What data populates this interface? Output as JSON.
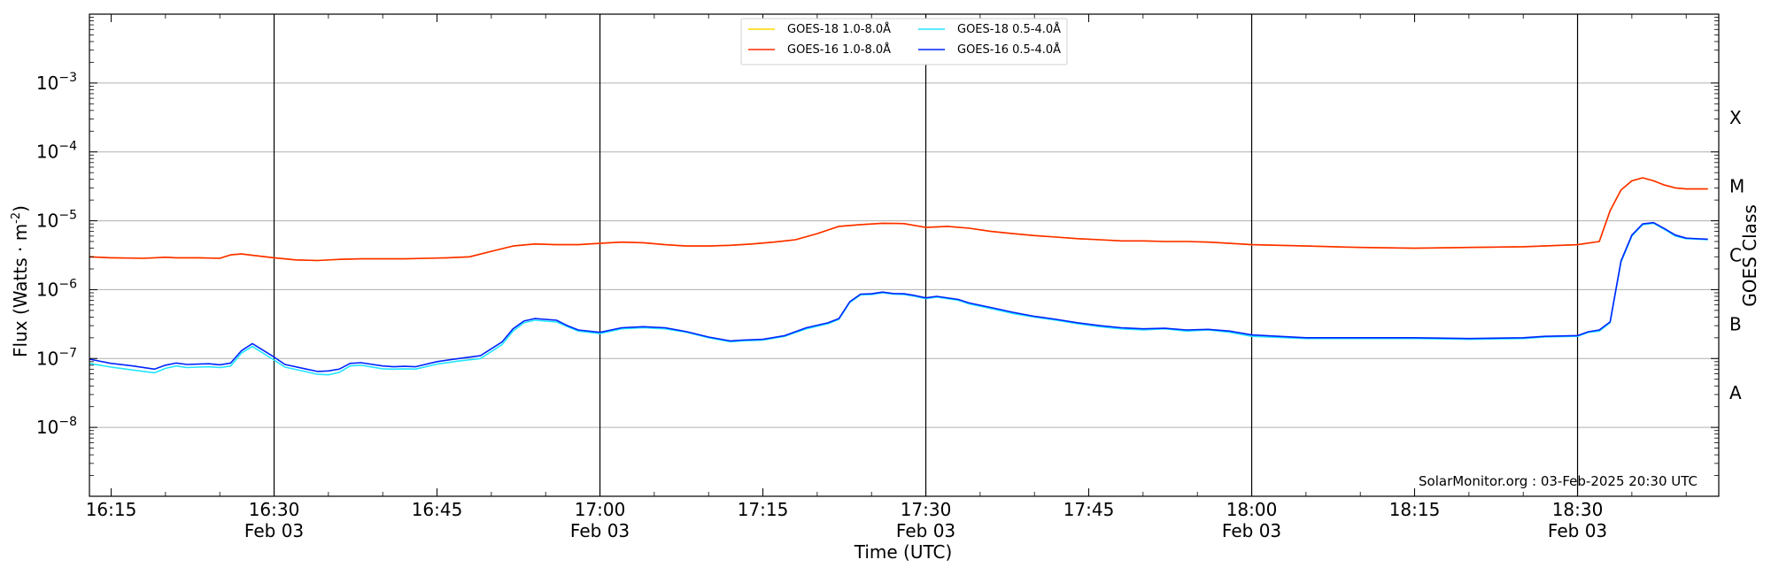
{
  "chart_data": {
    "type": "line",
    "xlabel": "Time (UTC)",
    "ylabel": "Flux (Watts · m",
    "ylabel_sup": "-2",
    "y2label": "GOES Class",
    "yscale": "log",
    "ylim": [
      1e-09,
      0.01
    ],
    "xlim": [
      "16:13",
      "18:43"
    ],
    "grid": "horizontal major y gridlines",
    "legend_position": "top-center",
    "footer": "SolarMonitor.org : 03-Feb-2025 20:30 UTC",
    "y_ticks": [
      {
        "value": 1e-08,
        "label": "10",
        "exp": "−8"
      },
      {
        "value": 1e-07,
        "label": "10",
        "exp": "−7"
      },
      {
        "value": 1e-06,
        "label": "10",
        "exp": "−6"
      },
      {
        "value": 1e-05,
        "label": "10",
        "exp": "−5"
      },
      {
        "value": 0.0001,
        "label": "10",
        "exp": "−4"
      },
      {
        "value": 0.001,
        "label": "10",
        "exp": "−3"
      }
    ],
    "goes_classes": [
      {
        "label": "A",
        "value": 3.16e-08
      },
      {
        "label": "B",
        "value": 3.16e-07
      },
      {
        "label": "C",
        "value": 3.16e-06
      },
      {
        "label": "M",
        "value": 3.16e-05
      },
      {
        "label": "X",
        "value": 0.000316
      }
    ],
    "x_ticks": [
      {
        "time": "16:15",
        "label": "16:15",
        "sub": ""
      },
      {
        "time": "16:30",
        "label": "16:30",
        "sub": "Feb 03"
      },
      {
        "time": "16:45",
        "label": "16:45",
        "sub": ""
      },
      {
        "time": "17:00",
        "label": "17:00",
        "sub": "Feb 03"
      },
      {
        "time": "17:15",
        "label": "17:15",
        "sub": ""
      },
      {
        "time": "17:30",
        "label": "17:30",
        "sub": "Feb 03"
      },
      {
        "time": "17:45",
        "label": "17:45",
        "sub": ""
      },
      {
        "time": "18:00",
        "label": "18:00",
        "sub": "Feb 03"
      },
      {
        "time": "18:15",
        "label": "18:15",
        "sub": ""
      },
      {
        "time": "18:30",
        "label": "18:30",
        "sub": "Feb 03"
      }
    ],
    "vlines": [
      "16:30",
      "17:00",
      "17:30",
      "18:00",
      "18:30"
    ],
    "legend_layout": [
      [
        "GOES-18 1.0-8.0Å",
        "GOES-18 0.5-4.0Å"
      ],
      [
        "GOES-16 1.0-8.0Å",
        "GOES-16 0.5-4.0Å"
      ]
    ],
    "series": [
      {
        "name": "GOES-18 1.0-8.0Å",
        "color": "#ffd700",
        "x": [
          "16:13",
          "16:15",
          "16:18",
          "16:20",
          "16:21",
          "16:23",
          "16:25",
          "16:26",
          "16:27",
          "16:28",
          "16:30",
          "16:32",
          "16:34",
          "16:36",
          "16:38",
          "16:40",
          "16:42",
          "16:44",
          "16:46",
          "16:48",
          "16:50",
          "16:52",
          "16:54",
          "16:56",
          "16:58",
          "17:00",
          "17:02",
          "17:04",
          "17:06",
          "17:08",
          "17:10",
          "17:12",
          "17:14",
          "17:16",
          "17:18",
          "17:20",
          "17:22",
          "17:24",
          "17:26",
          "17:28",
          "17:30",
          "17:32",
          "17:34",
          "17:36",
          "17:38",
          "17:40",
          "17:42",
          "17:44",
          "17:46",
          "17:48",
          "17:50",
          "17:52",
          "17:54",
          "17:56",
          "17:58",
          "18:00",
          "18:05",
          "18:10",
          "18:15",
          "18:20",
          "18:25",
          "18:30",
          "18:32",
          "18:33",
          "18:34",
          "18:35",
          "18:36",
          "18:37",
          "18:38",
          "18:39",
          "18:40",
          "18:42"
        ],
        "y": [
          3e-06,
          2.9e-06,
          2.85e-06,
          2.95e-06,
          2.9e-06,
          2.9e-06,
          2.85e-06,
          3.2e-06,
          3.3e-06,
          3.15e-06,
          2.9e-06,
          2.7e-06,
          2.65e-06,
          2.75e-06,
          2.8e-06,
          2.8e-06,
          2.8e-06,
          2.85e-06,
          2.9e-06,
          3e-06,
          3.6e-06,
          4.3e-06,
          4.6e-06,
          4.5e-06,
          4.5e-06,
          4.7e-06,
          4.9e-06,
          4.8e-06,
          4.5e-06,
          4.3e-06,
          4.3e-06,
          4.4e-06,
          4.6e-06,
          4.9e-06,
          5.3e-06,
          6.5e-06,
          8.3e-06,
          8.8e-06,
          9.2e-06,
          9.1e-06,
          8e-06,
          8.3e-06,
          7.8e-06,
          7e-06,
          6.5e-06,
          6.1e-06,
          5.8e-06,
          5.5e-06,
          5.3e-06,
          5.1e-06,
          5.1e-06,
          5e-06,
          5e-06,
          4.9e-06,
          4.7e-06,
          4.5e-06,
          4.3e-06,
          4.1e-06,
          4e-06,
          4.1e-06,
          4.2e-06,
          4.5e-06,
          5e-06,
          1.4e-05,
          2.8e-05,
          3.8e-05,
          4.2e-05,
          3.8e-05,
          3.3e-05,
          3e-05,
          2.9e-05,
          2.9e-05
        ]
      },
      {
        "name": "GOES-16 1.0-8.0Å",
        "color": "#ff2a00",
        "x": [
          "16:13",
          "16:15",
          "16:18",
          "16:20",
          "16:21",
          "16:23",
          "16:25",
          "16:26",
          "16:27",
          "16:28",
          "16:30",
          "16:32",
          "16:34",
          "16:36",
          "16:38",
          "16:40",
          "16:42",
          "16:44",
          "16:46",
          "16:48",
          "16:50",
          "16:52",
          "16:54",
          "16:56",
          "16:58",
          "17:00",
          "17:02",
          "17:04",
          "17:06",
          "17:08",
          "17:10",
          "17:12",
          "17:14",
          "17:16",
          "17:18",
          "17:20",
          "17:22",
          "17:24",
          "17:26",
          "17:28",
          "17:30",
          "17:32",
          "17:34",
          "17:36",
          "17:38",
          "17:40",
          "17:42",
          "17:44",
          "17:46",
          "17:48",
          "17:50",
          "17:52",
          "17:54",
          "17:56",
          "17:58",
          "18:00",
          "18:05",
          "18:10",
          "18:15",
          "18:20",
          "18:25",
          "18:30",
          "18:32",
          "18:33",
          "18:34",
          "18:35",
          "18:36",
          "18:37",
          "18:38",
          "18:39",
          "18:40",
          "18:42"
        ],
        "y": [
          3e-06,
          2.9e-06,
          2.85e-06,
          2.95e-06,
          2.9e-06,
          2.9e-06,
          2.85e-06,
          3.2e-06,
          3.3e-06,
          3.15e-06,
          2.9e-06,
          2.7e-06,
          2.65e-06,
          2.75e-06,
          2.8e-06,
          2.8e-06,
          2.8e-06,
          2.85e-06,
          2.9e-06,
          3e-06,
          3.6e-06,
          4.3e-06,
          4.6e-06,
          4.5e-06,
          4.5e-06,
          4.7e-06,
          4.9e-06,
          4.8e-06,
          4.5e-06,
          4.3e-06,
          4.3e-06,
          4.4e-06,
          4.6e-06,
          4.9e-06,
          5.3e-06,
          6.5e-06,
          8.3e-06,
          8.8e-06,
          9.2e-06,
          9.1e-06,
          8e-06,
          8.3e-06,
          7.8e-06,
          7e-06,
          6.5e-06,
          6.1e-06,
          5.8e-06,
          5.5e-06,
          5.3e-06,
          5.1e-06,
          5.1e-06,
          5e-06,
          5e-06,
          4.9e-06,
          4.7e-06,
          4.5e-06,
          4.3e-06,
          4.1e-06,
          4e-06,
          4.1e-06,
          4.2e-06,
          4.5e-06,
          5e-06,
          1.4e-05,
          2.8e-05,
          3.8e-05,
          4.2e-05,
          3.8e-05,
          3.3e-05,
          3e-05,
          2.9e-05,
          2.9e-05
        ]
      },
      {
        "name": "GOES-18 0.5-4.0Å",
        "color": "#22e5ff",
        "x": [
          "16:13",
          "16:15",
          "16:17",
          "16:19",
          "16:20",
          "16:21",
          "16:22",
          "16:23",
          "16:24",
          "16:25",
          "16:26",
          "16:27",
          "16:28",
          "16:30",
          "16:31",
          "16:33",
          "16:34",
          "16:35",
          "16:36",
          "16:37",
          "16:38",
          "16:40",
          "16:41",
          "16:42",
          "16:43",
          "16:45",
          "16:47",
          "16:49",
          "16:51",
          "16:52",
          "16:53",
          "16:54",
          "16:56",
          "16:57",
          "16:58",
          "17:00",
          "17:02",
          "17:04",
          "17:06",
          "17:08",
          "17:10",
          "17:12",
          "17:13",
          "17:15",
          "17:17",
          "17:19",
          "17:21",
          "17:22",
          "17:23",
          "17:24",
          "17:25",
          "17:26",
          "17:27",
          "17:28",
          "17:29",
          "17:30",
          "17:31",
          "17:33",
          "17:34",
          "17:36",
          "17:38",
          "17:40",
          "17:42",
          "17:44",
          "17:46",
          "17:48",
          "17:50",
          "17:52",
          "17:54",
          "17:56",
          "17:58",
          "18:00",
          "18:05",
          "18:10",
          "18:15",
          "18:20",
          "18:25",
          "18:27",
          "18:30",
          "18:31",
          "18:32",
          "18:33",
          "18:34",
          "18:35",
          "18:36",
          "18:37",
          "18:38",
          "18:39",
          "18:40",
          "18:42"
        ],
        "y": [
          8.5e-08,
          7.5e-08,
          6.8e-08,
          6.2e-08,
          7.2e-08,
          7.8e-08,
          7.4e-08,
          7.5e-08,
          7.6e-08,
          7.4e-08,
          7.8e-08,
          1.2e-07,
          1.5e-07,
          9.5e-08,
          7.5e-08,
          6.4e-08,
          5.9e-08,
          5.8e-08,
          6.3e-08,
          7.8e-08,
          8e-08,
          7.1e-08,
          7e-08,
          7.1e-08,
          7e-08,
          8.3e-08,
          9.2e-08,
          1e-07,
          1.6e-07,
          2.5e-07,
          3.3e-07,
          3.6e-07,
          3.4e-07,
          2.9e-07,
          2.5e-07,
          2.3e-07,
          2.7e-07,
          2.8e-07,
          2.7e-07,
          2.4e-07,
          2e-07,
          1.75e-07,
          1.8e-07,
          1.85e-07,
          2.1e-07,
          2.7e-07,
          3.2e-07,
          3.7e-07,
          6.5e-07,
          8.4e-07,
          8.5e-07,
          9e-07,
          8.6e-07,
          8.5e-07,
          8e-07,
          7.4e-07,
          7.8e-07,
          7e-07,
          6.2e-07,
          5.3e-07,
          4.5e-07,
          4e-07,
          3.6e-07,
          3.2e-07,
          2.9e-07,
          2.7e-07,
          2.6e-07,
          2.7e-07,
          2.5e-07,
          2.6e-07,
          2.4e-07,
          2.1e-07,
          1.95e-07,
          1.95e-07,
          1.95e-07,
          1.9e-07,
          1.95e-07,
          2.05e-07,
          2.1e-07,
          2.4e-07,
          2.5e-07,
          3.3e-07,
          2.5e-06,
          6e-06,
          8.8e-06,
          9.2e-06,
          7.5e-06,
          6e-06,
          5.5e-06,
          5.3e-06
        ]
      },
      {
        "name": "GOES-16 0.5-4.0Å",
        "color": "#0024ff",
        "x": [
          "16:13",
          "16:15",
          "16:17",
          "16:19",
          "16:20",
          "16:21",
          "16:22",
          "16:23",
          "16:24",
          "16:25",
          "16:26",
          "16:27",
          "16:28",
          "16:30",
          "16:31",
          "16:33",
          "16:34",
          "16:35",
          "16:36",
          "16:37",
          "16:38",
          "16:40",
          "16:41",
          "16:42",
          "16:43",
          "16:45",
          "16:47",
          "16:49",
          "16:51",
          "16:52",
          "16:53",
          "16:54",
          "16:56",
          "16:57",
          "16:58",
          "17:00",
          "17:02",
          "17:04",
          "17:06",
          "17:08",
          "17:10",
          "17:12",
          "17:13",
          "17:15",
          "17:17",
          "17:19",
          "17:21",
          "17:22",
          "17:23",
          "17:24",
          "17:25",
          "17:26",
          "17:27",
          "17:28",
          "17:29",
          "17:30",
          "17:31",
          "17:33",
          "17:34",
          "17:36",
          "17:38",
          "17:40",
          "17:42",
          "17:44",
          "17:46",
          "17:48",
          "17:50",
          "17:52",
          "17:54",
          "17:56",
          "17:58",
          "18:00",
          "18:05",
          "18:10",
          "18:15",
          "18:20",
          "18:25",
          "18:27",
          "18:30",
          "18:31",
          "18:32",
          "18:33",
          "18:34",
          "18:35",
          "18:36",
          "18:37",
          "18:38",
          "18:39",
          "18:40",
          "18:42"
        ],
        "y": [
          9.8e-08,
          8.5e-08,
          7.8e-08,
          7e-08,
          8e-08,
          8.6e-08,
          8.2e-08,
          8.3e-08,
          8.4e-08,
          8.1e-08,
          8.6e-08,
          1.3e-07,
          1.65e-07,
          1.05e-07,
          8.2e-08,
          7e-08,
          6.5e-08,
          6.6e-08,
          7e-08,
          8.5e-08,
          8.7e-08,
          7.8e-08,
          7.6e-08,
          7.7e-08,
          7.6e-08,
          9e-08,
          1e-07,
          1.1e-07,
          1.75e-07,
          2.7e-07,
          3.5e-07,
          3.8e-07,
          3.6e-07,
          3e-07,
          2.6e-07,
          2.4e-07,
          2.8e-07,
          2.9e-07,
          2.8e-07,
          2.45e-07,
          2.05e-07,
          1.8e-07,
          1.85e-07,
          1.9e-07,
          2.15e-07,
          2.8e-07,
          3.3e-07,
          3.8e-07,
          6.7e-07,
          8.6e-07,
          8.7e-07,
          9.2e-07,
          8.8e-07,
          8.7e-07,
          8.2e-07,
          7.6e-07,
          8e-07,
          7.2e-07,
          6.4e-07,
          5.5e-07,
          4.7e-07,
          4.1e-07,
          3.7e-07,
          3.3e-07,
          3e-07,
          2.8e-07,
          2.7e-07,
          2.75e-07,
          2.6e-07,
          2.65e-07,
          2.5e-07,
          2.2e-07,
          2e-07,
          2e-07,
          2e-07,
          1.95e-07,
          2e-07,
          2.1e-07,
          2.15e-07,
          2.45e-07,
          2.6e-07,
          3.4e-07,
          2.6e-06,
          6.2e-06,
          9e-06,
          9.4e-06,
          7.7e-06,
          6.2e-06,
          5.6e-06,
          5.4e-06
        ]
      }
    ]
  }
}
